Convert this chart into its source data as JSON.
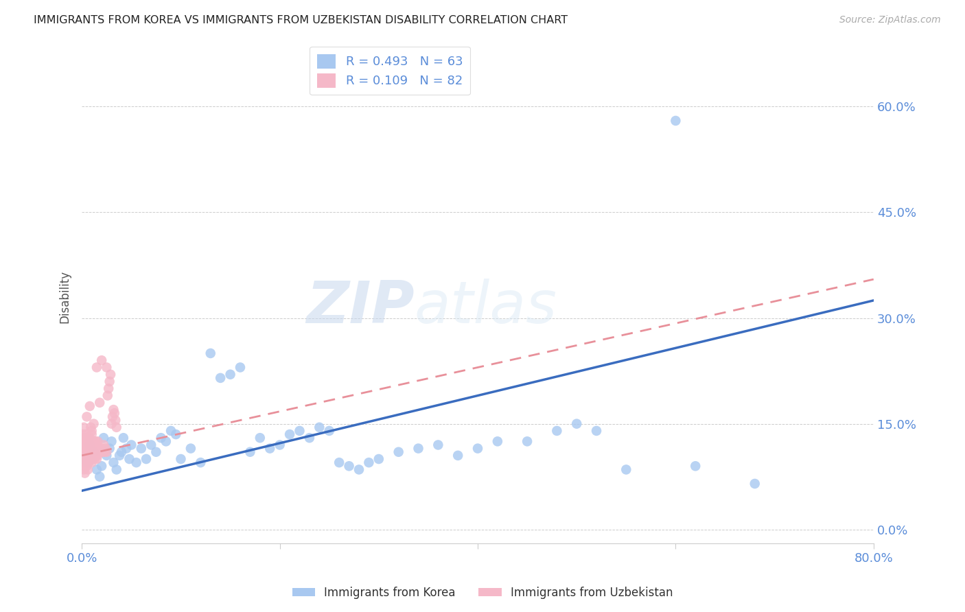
{
  "title": "IMMIGRANTS FROM KOREA VS IMMIGRANTS FROM UZBEKISTAN DISABILITY CORRELATION CHART",
  "source": "Source: ZipAtlas.com",
  "ylabel_label": "Disability",
  "xlim": [
    0.0,
    0.8
  ],
  "ylim": [
    -0.02,
    0.68
  ],
  "korea_R": 0.493,
  "korea_N": 63,
  "uzbekistan_R": 0.109,
  "uzbekistan_N": 82,
  "korea_color": "#a8c8f0",
  "uzbekistan_color": "#f5b8c8",
  "korea_line_color": "#3a6cbf",
  "uzbekistan_line_color": "#e8909a",
  "watermark_zip": "ZIP",
  "watermark_atlas": "atlas",
  "legend_korea_label": "Immigrants from Korea",
  "legend_uzbekistan_label": "Immigrants from Uzbekistan",
  "korea_line_x0": 0.0,
  "korea_line_y0": 0.055,
  "korea_line_x1": 0.8,
  "korea_line_y1": 0.325,
  "uzbekistan_line_x0": 0.0,
  "uzbekistan_line_y0": 0.105,
  "uzbekistan_line_x1": 0.8,
  "uzbekistan_line_y1": 0.355,
  "korea_scatter_x": [
    0.005,
    0.008,
    0.01,
    0.012,
    0.015,
    0.018,
    0.02,
    0.022,
    0.025,
    0.028,
    0.03,
    0.032,
    0.035,
    0.038,
    0.04,
    0.042,
    0.045,
    0.048,
    0.05,
    0.055,
    0.06,
    0.065,
    0.07,
    0.075,
    0.08,
    0.085,
    0.09,
    0.095,
    0.1,
    0.11,
    0.12,
    0.13,
    0.14,
    0.15,
    0.16,
    0.17,
    0.18,
    0.19,
    0.2,
    0.21,
    0.22,
    0.23,
    0.24,
    0.25,
    0.26,
    0.27,
    0.28,
    0.29,
    0.3,
    0.32,
    0.34,
    0.36,
    0.38,
    0.4,
    0.42,
    0.45,
    0.48,
    0.5,
    0.52,
    0.55,
    0.6,
    0.62,
    0.68
  ],
  "korea_scatter_y": [
    0.095,
    0.12,
    0.1,
    0.11,
    0.085,
    0.075,
    0.09,
    0.13,
    0.105,
    0.115,
    0.125,
    0.095,
    0.085,
    0.105,
    0.11,
    0.13,
    0.115,
    0.1,
    0.12,
    0.095,
    0.115,
    0.1,
    0.12,
    0.11,
    0.13,
    0.125,
    0.14,
    0.135,
    0.1,
    0.115,
    0.095,
    0.25,
    0.215,
    0.22,
    0.23,
    0.11,
    0.13,
    0.115,
    0.12,
    0.135,
    0.14,
    0.13,
    0.145,
    0.14,
    0.095,
    0.09,
    0.085,
    0.095,
    0.1,
    0.11,
    0.115,
    0.12,
    0.105,
    0.115,
    0.125,
    0.125,
    0.14,
    0.15,
    0.14,
    0.085,
    0.58,
    0.09,
    0.065
  ],
  "uzbekistan_scatter_x": [
    0.001,
    0.001,
    0.001,
    0.001,
    0.001,
    0.002,
    0.002,
    0.002,
    0.002,
    0.002,
    0.002,
    0.002,
    0.003,
    0.003,
    0.003,
    0.003,
    0.003,
    0.003,
    0.004,
    0.004,
    0.004,
    0.004,
    0.004,
    0.005,
    0.005,
    0.005,
    0.005,
    0.006,
    0.006,
    0.006,
    0.006,
    0.007,
    0.007,
    0.007,
    0.008,
    0.008,
    0.008,
    0.009,
    0.009,
    0.009,
    0.01,
    0.01,
    0.01,
    0.011,
    0.011,
    0.012,
    0.012,
    0.013,
    0.013,
    0.014,
    0.014,
    0.015,
    0.015,
    0.016,
    0.016,
    0.017,
    0.018,
    0.019,
    0.02,
    0.021,
    0.022,
    0.023,
    0.024,
    0.025,
    0.026,
    0.027,
    0.028,
    0.029,
    0.03,
    0.031,
    0.032,
    0.033,
    0.034,
    0.035,
    0.025,
    0.02,
    0.015,
    0.01,
    0.005,
    0.008,
    0.012,
    0.018
  ],
  "uzbekistan_scatter_y": [
    0.105,
    0.115,
    0.125,
    0.135,
    0.095,
    0.1,
    0.11,
    0.12,
    0.13,
    0.085,
    0.095,
    0.145,
    0.09,
    0.1,
    0.11,
    0.12,
    0.13,
    0.08,
    0.095,
    0.105,
    0.115,
    0.125,
    0.135,
    0.09,
    0.1,
    0.115,
    0.125,
    0.085,
    0.095,
    0.11,
    0.12,
    0.095,
    0.11,
    0.13,
    0.1,
    0.115,
    0.13,
    0.105,
    0.12,
    0.145,
    0.095,
    0.115,
    0.135,
    0.1,
    0.12,
    0.105,
    0.125,
    0.1,
    0.12,
    0.105,
    0.125,
    0.1,
    0.12,
    0.105,
    0.125,
    0.11,
    0.115,
    0.11,
    0.115,
    0.11,
    0.12,
    0.11,
    0.115,
    0.11,
    0.19,
    0.2,
    0.21,
    0.22,
    0.15,
    0.16,
    0.17,
    0.165,
    0.155,
    0.145,
    0.23,
    0.24,
    0.23,
    0.14,
    0.16,
    0.175,
    0.15,
    0.18
  ]
}
